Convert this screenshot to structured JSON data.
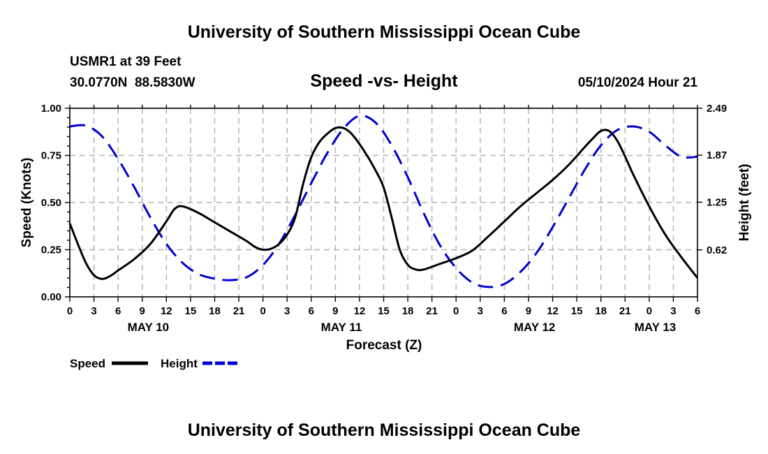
{
  "page": {
    "title_top": "University of Southern Mississippi Ocean Cube",
    "title_bottom": "University of Southern Mississippi Ocean Cube",
    "station": "USMR1 at 39 Feet",
    "coords": "30.0770N  88.5830W",
    "timestamp": "05/10/2024 Hour 21"
  },
  "colors": {
    "speed": "#000000",
    "height": "#0000d0",
    "grid": "#b3b3b3"
  },
  "chart_data": {
    "type": "line",
    "title": "Speed -vs- Height",
    "xlabel": "Forecast (Z)",
    "ylabel": "Speed (Knots)",
    "y2label": "Height (feet)",
    "x_unit": "hours from May 10 00Z",
    "xlim": [
      0,
      78
    ],
    "ylim": [
      0,
      1.0
    ],
    "y2lim": [
      0,
      2.49
    ],
    "x_ticks": [
      0,
      3,
      6,
      9,
      12,
      15,
      18,
      21,
      24,
      27,
      30,
      33,
      36,
      39,
      42,
      45,
      48,
      51,
      54,
      57,
      60,
      63,
      66,
      69,
      72,
      75,
      78
    ],
    "x_tick_labels": [
      "0",
      "3",
      "6",
      "9",
      "12",
      "15",
      "18",
      "21",
      "0",
      "3",
      "6",
      "9",
      "12",
      "15",
      "18",
      "21",
      "0",
      "3",
      "6",
      "9",
      "12",
      "15",
      "18",
      "21",
      "0",
      "3",
      "6"
    ],
    "date_labels": [
      {
        "text": "MAY 10",
        "x": 9.75
      },
      {
        "text": "MAY 11",
        "x": 33.75
      },
      {
        "text": "MAY 12",
        "x": 57.75
      },
      {
        "text": "MAY 13",
        "x": 72.75
      }
    ],
    "y_ticks": [
      0,
      0.25,
      0.5,
      0.75,
      1.0
    ],
    "y_tick_labels": [
      "0.00",
      "0.25",
      "0.50",
      "0.75",
      "1.00"
    ],
    "y2_ticks": [
      0.62,
      1.25,
      1.87,
      2.49
    ],
    "y2_tick_labels": [
      "0.62",
      "1.25",
      "1.87",
      "2.49"
    ],
    "series": [
      {
        "name": "Speed",
        "axis": "left",
        "style": "solid",
        "x": [
          0,
          1,
          2,
          3,
          4,
          5,
          6,
          8,
          10,
          12,
          13,
          14,
          16,
          18,
          20,
          22,
          23,
          24,
          25,
          26,
          27,
          28,
          29,
          30,
          31,
          32,
          33,
          34,
          35,
          36,
          37,
          38,
          39,
          40,
          41,
          42,
          43,
          44,
          46,
          48,
          50,
          52,
          54,
          56,
          58,
          60,
          62,
          64,
          65,
          66,
          67,
          68,
          69,
          70,
          72,
          74,
          76,
          78
        ],
        "values": [
          0.39,
          0.28,
          0.18,
          0.115,
          0.095,
          0.11,
          0.14,
          0.2,
          0.28,
          0.4,
          0.465,
          0.48,
          0.445,
          0.395,
          0.345,
          0.295,
          0.265,
          0.25,
          0.255,
          0.28,
          0.33,
          0.42,
          0.6,
          0.74,
          0.82,
          0.865,
          0.895,
          0.895,
          0.865,
          0.81,
          0.745,
          0.67,
          0.58,
          0.42,
          0.25,
          0.17,
          0.145,
          0.145,
          0.175,
          0.205,
          0.245,
          0.32,
          0.4,
          0.48,
          0.55,
          0.62,
          0.7,
          0.795,
          0.84,
          0.88,
          0.88,
          0.83,
          0.745,
          0.65,
          0.48,
          0.33,
          0.21,
          0.1
        ]
      },
      {
        "name": "Height",
        "axis": "right",
        "style": "dashed",
        "x": [
          0,
          2,
          4,
          6,
          8,
          10,
          12,
          14,
          16,
          18,
          20,
          22,
          24,
          26,
          28,
          30,
          32,
          34,
          36,
          38,
          40,
          42,
          44,
          46,
          48,
          50,
          52,
          54,
          56,
          58,
          60,
          62,
          64,
          66,
          68,
          70,
          72,
          74,
          76,
          78
        ],
        "values": [
          2.25,
          2.26,
          2.12,
          1.82,
          1.45,
          1.05,
          0.7,
          0.45,
          0.3,
          0.24,
          0.22,
          0.26,
          0.42,
          0.7,
          1.08,
          1.5,
          1.9,
          2.22,
          2.39,
          2.3,
          2.0,
          1.58,
          1.1,
          0.68,
          0.38,
          0.19,
          0.13,
          0.17,
          0.33,
          0.58,
          0.92,
          1.3,
          1.68,
          2.0,
          2.2,
          2.25,
          2.18,
          2.0,
          1.85,
          1.85
        ]
      }
    ],
    "legend": [
      {
        "label": "Speed",
        "series": "Speed"
      },
      {
        "label": "Height",
        "series": "Height"
      }
    ],
    "grid": true
  }
}
